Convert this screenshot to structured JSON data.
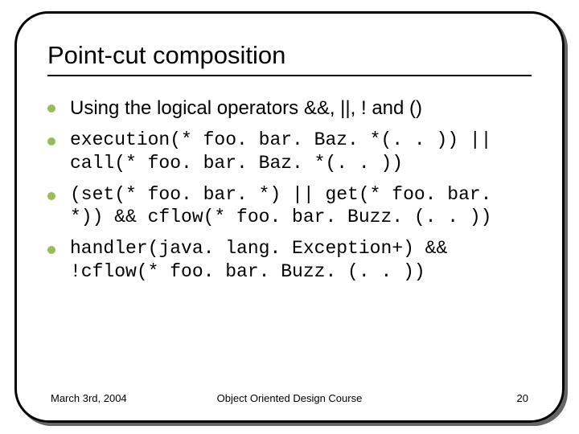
{
  "slide": {
    "title": "Point-cut composition",
    "bullets": [
      {
        "text": "Using the logical operators &&, ||, ! and ()",
        "mono": false
      },
      {
        "text": "execution(* foo. bar. Baz. *(. . )) || call(* foo. bar. Baz. *(. . ))",
        "mono": true
      },
      {
        "text": "(set(* foo. bar. *) || get(* foo. bar. *)) && cflow(* foo. bar. Buzz. (. . ))",
        "mono": true
      },
      {
        "text": "handler(java. lang. Exception+)  && !cflow(* foo. bar. Buzz. (. . ))",
        "mono": true
      }
    ],
    "footer": {
      "date": "March 3rd, 2004",
      "course": "Object Oriented Design Course",
      "page": "20"
    }
  },
  "style": {
    "bullet_color": "#9bba59",
    "border_color": "#000000",
    "shadow_color": "#666666",
    "background": "#ffffff",
    "title_fontsize": 31,
    "body_fontsize": 24,
    "mono_fontsize": 23,
    "footer_fontsize": 13,
    "border_radius": 42,
    "border_width": 3
  }
}
